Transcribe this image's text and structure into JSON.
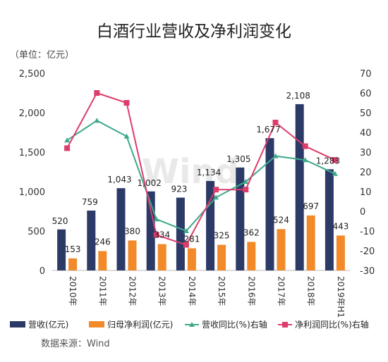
{
  "chart_data": {
    "type": "bar",
    "title": "白酒行业营收及净利润变化",
    "unit_label": "（单位：亿元）",
    "source": "数据来源：Wind",
    "watermark": "Wind",
    "categories": [
      "2010年",
      "2011年",
      "2012年",
      "2013年",
      "2014年",
      "2015年",
      "2016年",
      "2017年",
      "2018年",
      "2019年H1"
    ],
    "series": [
      {
        "name": "营收(亿元)",
        "kind": "bar",
        "axis": "left",
        "color": "#2b3a67",
        "values": [
          520,
          759,
          1043,
          1002,
          923,
          1134,
          1305,
          1677,
          2108,
          1283
        ],
        "labels": [
          "520",
          "759",
          "1,043",
          "1,002",
          "923",
          "1,134",
          "1,305",
          "1,677",
          "2,108",
          "1,283"
        ]
      },
      {
        "name": "归母净利润(亿元)",
        "kind": "bar",
        "axis": "left",
        "color": "#f28a2a",
        "values": [
          153,
          246,
          380,
          334,
          281,
          325,
          362,
          524,
          697,
          443
        ],
        "labels": [
          "153",
          "246",
          "380",
          "334",
          "281",
          "325",
          "362",
          "524",
          "697",
          "443"
        ]
      },
      {
        "name": "营收同比(%)右轴",
        "kind": "line",
        "axis": "right",
        "color": "#3fa98d",
        "values": [
          36,
          46,
          38,
          -4,
          -10,
          7,
          15,
          28,
          26,
          19
        ]
      },
      {
        "name": "净利润同比(%)右轴",
        "kind": "line",
        "axis": "right",
        "color": "#dd3d6a",
        "values": [
          32,
          60,
          55,
          -12,
          -17,
          11,
          11,
          45,
          33,
          26
        ]
      }
    ],
    "left_axis": {
      "min": 0,
      "max": 2500,
      "ticks": [
        0,
        500,
        1000,
        1500,
        2000,
        2500
      ],
      "tick_labels": [
        "0",
        "500",
        "1,000",
        "1,500",
        "2,000",
        "2,500"
      ]
    },
    "right_axis": {
      "min": -30,
      "max": 70,
      "ticks": [
        -30,
        -20,
        -10,
        0,
        10,
        20,
        30,
        40,
        50,
        60,
        70
      ],
      "tick_labels": [
        "-30",
        "-20",
        "-10",
        "0",
        "10",
        "20",
        "30",
        "40",
        "50",
        "60",
        "70"
      ]
    },
    "grid": false,
    "legend_position": "bottom"
  }
}
